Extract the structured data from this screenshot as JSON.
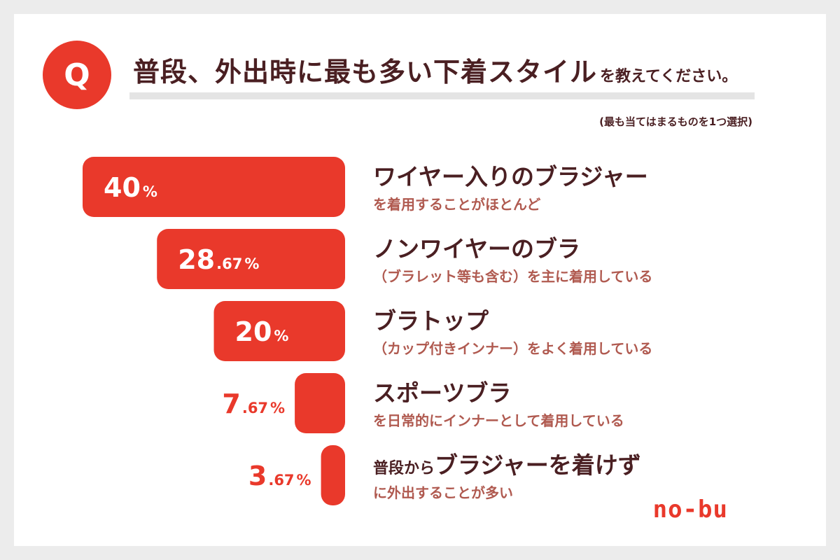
{
  "question": {
    "badge": "Q",
    "title_main": "普段、外出時に最も多い下着スタイル",
    "title_sub": "を教えてください。",
    "note": "(最も当てはまるものを1つ選択)"
  },
  "logo": "no-bu",
  "colors": {
    "bar": "#e9392b",
    "label": "#4a1f22",
    "sub_label": "#b05a50",
    "value_inside": "#ffffff",
    "value_outside": "#e9392b"
  },
  "chart_data": {
    "type": "bar",
    "orientation": "horizontal",
    "title": "普段、外出時に最も多い下着スタイルを教えてください。",
    "unit": "%",
    "categories": [
      "ワイヤー入りのブラジャーを着用することがほとんど",
      "ノンワイヤーのブラ（ブラレット等も含む）を主に着用している",
      "ブラトップ（カップ付きインナー）をよく着用している",
      "スポーツブラを日常的にインナーとして着用している",
      "普段からブラジャーを着けずに外出することが多い"
    ],
    "values": [
      40,
      28.67,
      20,
      7.67,
      3.67
    ],
    "items": [
      {
        "value": 40,
        "int": "40",
        "dec": "",
        "pct": "%",
        "label_pre": "",
        "label_main": "ワイヤー入りのブラジャー",
        "label_sub": "を着用することがほとんど"
      },
      {
        "value": 28.67,
        "int": "28",
        "dec": ".67",
        "pct": "%",
        "label_pre": "",
        "label_main": "ノンワイヤーのブラ",
        "label_sub": "（ブラレット等も含む）を主に着用している"
      },
      {
        "value": 20,
        "int": "20",
        "dec": "",
        "pct": "%",
        "label_pre": "",
        "label_main": "ブラトップ",
        "label_sub": "（カップ付きインナー）をよく着用している"
      },
      {
        "value": 7.67,
        "int": "7",
        "dec": ".67",
        "pct": "%",
        "label_pre": "",
        "label_main": "スポーツブラ",
        "label_sub": "を日常的にインナーとして着用している"
      },
      {
        "value": 3.67,
        "int": "3",
        "dec": ".67",
        "pct": "%",
        "label_pre": "普段から",
        "label_main": "ブラジャーを着けず",
        "label_sub": "に外出することが多い"
      }
    ]
  }
}
